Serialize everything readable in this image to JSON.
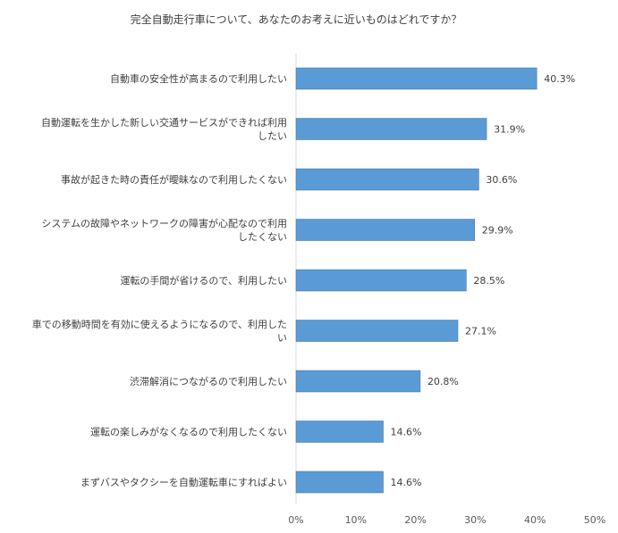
{
  "chart_data": {
    "type": "bar",
    "orientation": "horizontal",
    "title": "完全自動走行車について、あなたのお考えに近いものはどれですか？",
    "categories": [
      [
        "自動車の安全性が高まるので利用したい"
      ],
      [
        "自動運転を生かした新しい交通サービスができれば利用",
        "したい"
      ],
      [
        "事故が起きた時の責任が曖昧なので利用したくない"
      ],
      [
        "システムの故障やネットワークの障害が心配なので利用",
        "したくない"
      ],
      [
        "運転の手間が省けるので、利用したい"
      ],
      [
        "車での移動時間を有効に使えるようになるので、利用した",
        "い"
      ],
      [
        "渋滞解消につながるので利用したい"
      ],
      [
        "運転の楽しみがなくなるので利用したくない"
      ],
      [
        "まずバスやタクシーを自動運転車にすればよい"
      ]
    ],
    "values": [
      40.3,
      31.9,
      30.6,
      29.9,
      28.5,
      27.1,
      20.8,
      14.6,
      14.6
    ],
    "data_labels": [
      "40.3%",
      "31.9%",
      "30.6%",
      "29.9%",
      "28.5%",
      "27.1%",
      "20.8%",
      "14.6%",
      "14.6%"
    ],
    "xlim": [
      0,
      50
    ],
    "x_ticks": [
      0,
      10,
      20,
      30,
      40,
      50
    ],
    "x_tick_labels": [
      "0%",
      "10%",
      "20%",
      "30%",
      "40%",
      "50%"
    ],
    "xlabel": "",
    "ylabel": "",
    "grid": false,
    "legend": "none",
    "colors": {
      "bar": "#5b9bd5",
      "bar_edge": "#41719c",
      "axis": "#d9d9d9",
      "text": "#404040"
    }
  }
}
